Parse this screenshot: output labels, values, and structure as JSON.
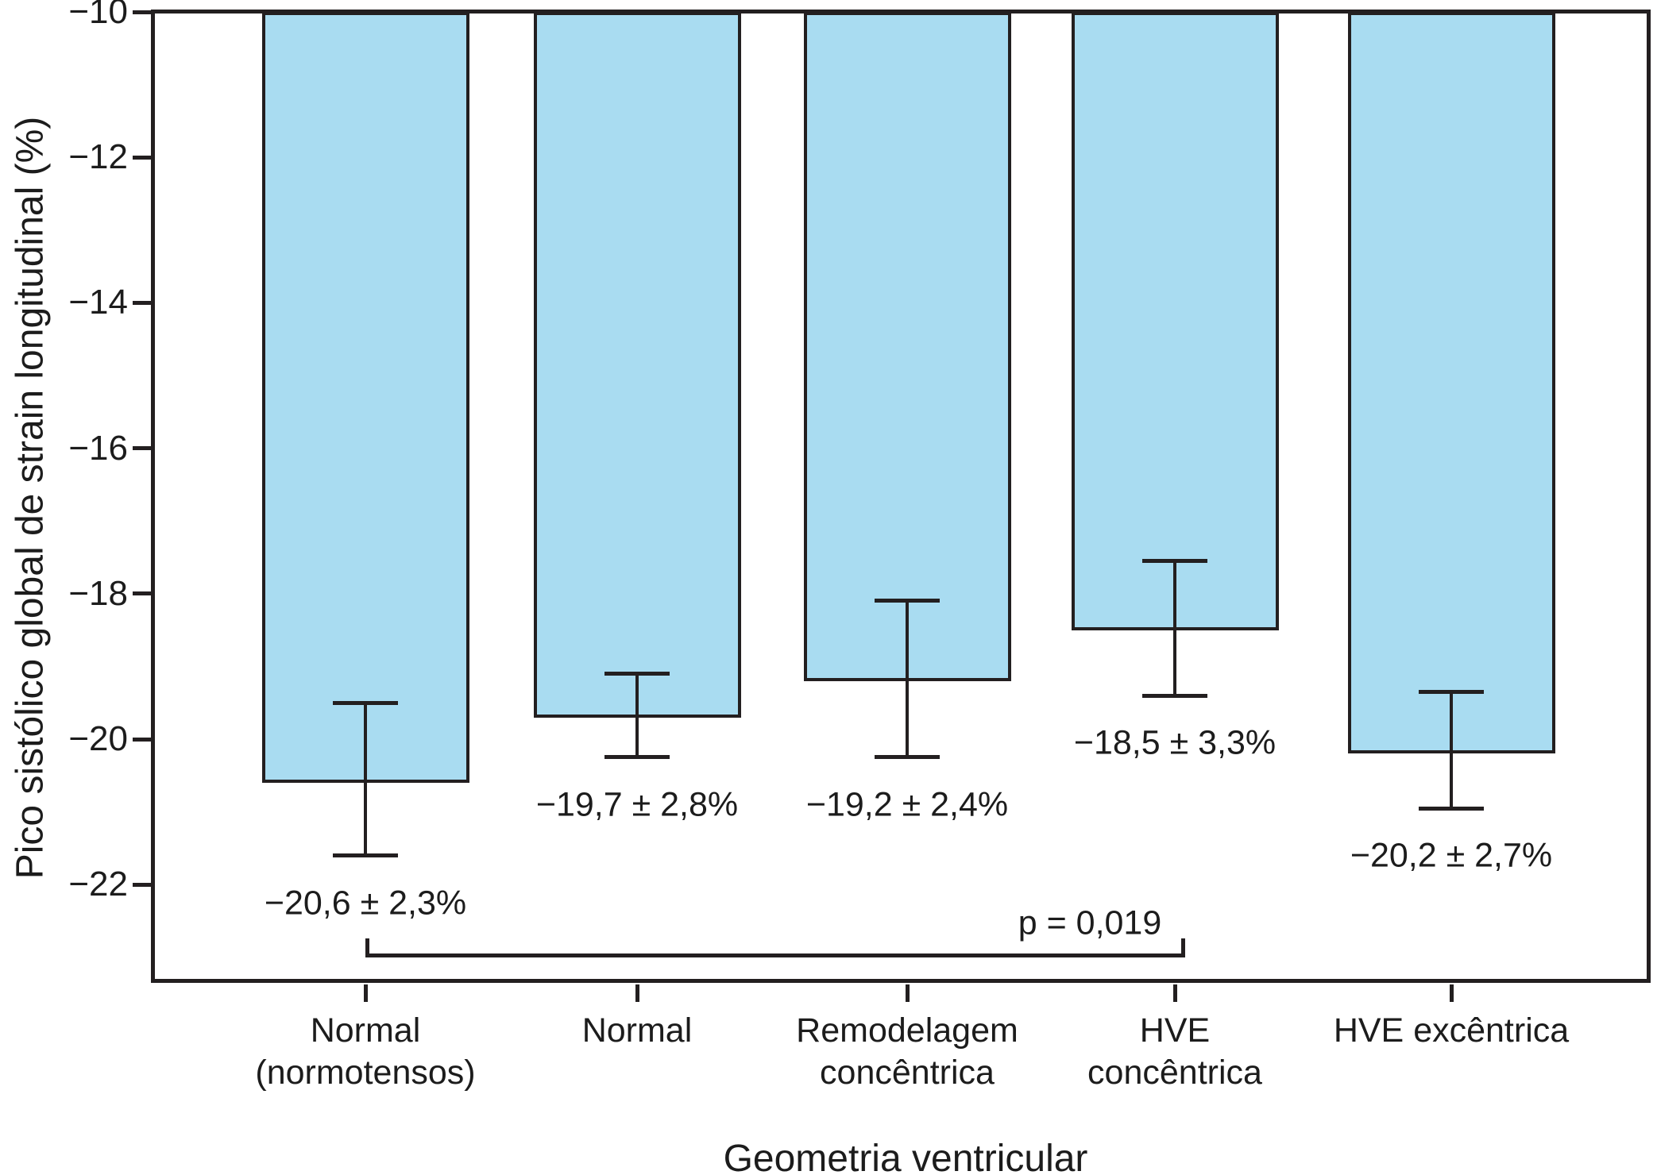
{
  "chart_data": {
    "type": "bar",
    "title": "",
    "xlabel": "Geometria ventricular",
    "ylabel": "Pico sistólico global de strain longitudinal (%)",
    "ylim": [
      -10,
      -23.4
    ],
    "grid": false,
    "legend": "none",
    "bar_color": "#a9dcf1",
    "line_color": "#231f20",
    "y_ticks": [
      -10,
      -12,
      -14,
      -16,
      -18,
      -20,
      -22
    ],
    "y_tick_labels": [
      "−10",
      "−12",
      "−14",
      "−16",
      "−18",
      "−20",
      "−22"
    ],
    "categories": [
      {
        "lines": [
          "Normal",
          "(normotensos)"
        ]
      },
      {
        "lines": [
          "Normal"
        ]
      },
      {
        "lines": [
          "Remodelagem",
          "concêntrica"
        ]
      },
      {
        "lines": [
          "HVE",
          "concêntrica"
        ]
      },
      {
        "lines": [
          "HVE excêntrica"
        ]
      }
    ],
    "values": [
      -20.6,
      -19.7,
      -19.2,
      -18.5,
      -20.2
    ],
    "value_labels": [
      "−20,6 ± 2,3%",
      "−19,7 ± 2,8%",
      "−19,2 ± 2,4%",
      "−18,5 ± 3,3%",
      "−20,2 ± 2,7%"
    ],
    "error_bars_as_drawn": [
      {
        "upper": -19.5,
        "lower": -21.6
      },
      {
        "upper": -19.1,
        "lower": -20.25
      },
      {
        "upper": -18.1,
        "lower": -20.25
      },
      {
        "upper": -17.55,
        "lower": -19.4
      },
      {
        "upper": -19.35,
        "lower": -20.95
      }
    ],
    "significance": {
      "label": "p = 0,019",
      "from_category_index": 0,
      "to_category_index": 3
    }
  }
}
